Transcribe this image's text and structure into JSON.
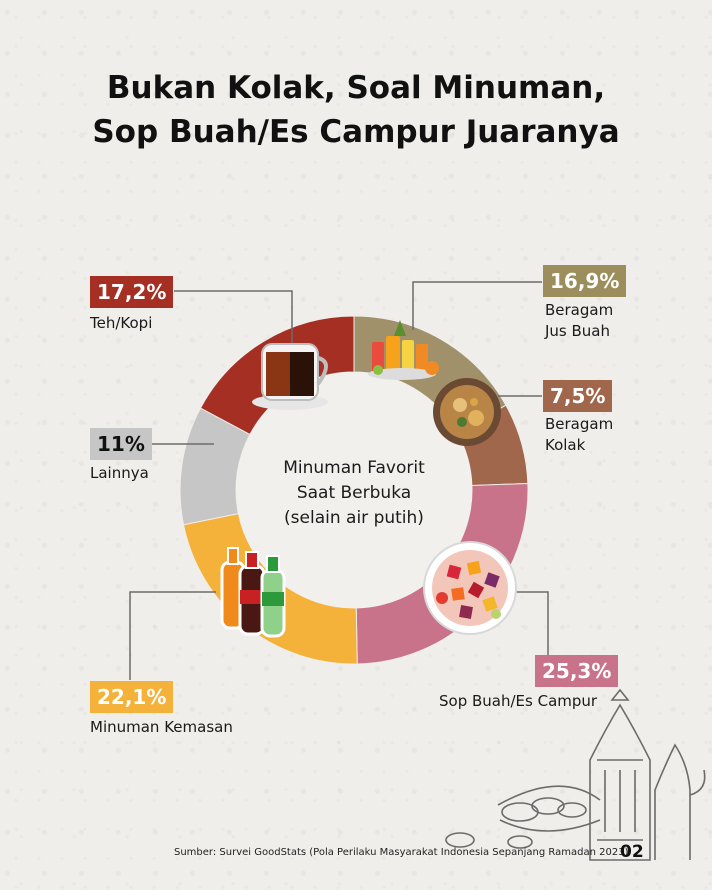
{
  "title_line1": "Bukan Kolak, Soal Minuman,",
  "title_line2": "Sop Buah/Es Campur Juaranya",
  "center_line1": "Minuman Favorit",
  "center_line2": "Saat Berbuka",
  "center_line3": "(selain air putih)",
  "source": "Sumber: Survei GoodStats (Pola Perilaku Masyarakat Indonesia Sepanjang Ramadan 2023)",
  "page_number": "02",
  "chart_data": {
    "type": "pie",
    "variant": "donut",
    "center_label": "Minuman Favorit Saat Berbuka (selain air putih)",
    "slices": [
      {
        "label": "Beragam Jus Buah",
        "value": 16.9,
        "display": "16,9%",
        "color": "#a0916a"
      },
      {
        "label": "Beragam Kolak",
        "value": 7.5,
        "display": "7,5%",
        "color": "#a0674c"
      },
      {
        "label": "Sop Buah/Es Campur",
        "value": 25.3,
        "display": "25,3%",
        "color": "#c9738a"
      },
      {
        "label": "Minuman Kemasan",
        "value": 22.1,
        "display": "22,1%",
        "color": "#f5b23b"
      },
      {
        "label": "Lainnya",
        "value": 11,
        "display": "11%",
        "color": "#c6c6c6"
      },
      {
        "label": "Teh/Kopi",
        "value": 17.2,
        "display": "17,2%",
        "color": "#a52f23"
      }
    ]
  },
  "labels": {
    "teh": {
      "pct": "17,2%",
      "name": "Teh/Kopi",
      "color": "#a52f23"
    },
    "jus": {
      "pct": "16,9%",
      "name1": "Beragam",
      "name2": "Jus Buah",
      "color": "#9c8e5c"
    },
    "kolak": {
      "pct": "7,5%",
      "name1": "Beragam",
      "name2": "Kolak",
      "color": "#a0674c"
    },
    "lainnya": {
      "pct": "11%",
      "name": "Lainnya",
      "color": "#c6c6c6"
    },
    "kemasan": {
      "pct": "22,1%",
      "name": "Minuman Kemasan",
      "color": "#f5b23b"
    },
    "sop": {
      "pct": "25,3%",
      "name": "Sop Buah/Es Campur",
      "color": "#c9738a"
    }
  }
}
